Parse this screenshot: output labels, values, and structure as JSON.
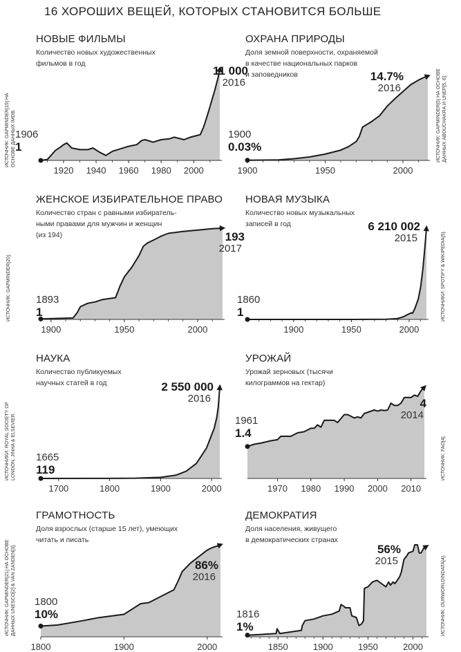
{
  "title": "16 ХОРОШИХ ВЕЩЕЙ, КОТОРЫХ СТАНОВИТСЯ БОЛЬШЕ",
  "colors": {
    "area": "#c8c8c8",
    "line": "#1a1a1a"
  },
  "chart_data": [
    {
      "type": "area",
      "title": "НОВЫЕ ФИЛЬМЫ",
      "subtitle": [
        "Количество новых художественных",
        "фильмов в год"
      ],
      "source": [
        "ИСТОЧНИК: GAPMINDER[19] НА",
        "ОСНОВЕ ДАННЫХ IMDB."
      ],
      "start_year": "1906",
      "start_value": "1",
      "end_year": "2016",
      "end_value": "11 000",
      "xlim": [
        1906,
        2016
      ],
      "ylim": [
        0,
        11000
      ],
      "ticks": [
        1920,
        1940,
        1960,
        1980,
        2000
      ],
      "minor_step": 10,
      "x": [
        1906,
        1910,
        1915,
        1918,
        1920,
        1922,
        1925,
        1930,
        1935,
        1938,
        1942,
        1946,
        1950,
        1955,
        1960,
        1965,
        1968,
        1970,
        1975,
        1980,
        1985,
        1988,
        1990,
        1994,
        1998,
        2002,
        2004,
        2006,
        2008,
        2010,
        2013,
        2015,
        2016
      ],
      "y": [
        1,
        100,
        1200,
        1600,
        1900,
        2100,
        1500,
        1300,
        1300,
        1500,
        1000,
        600,
        1100,
        1400,
        1700,
        1900,
        2400,
        2500,
        2200,
        2500,
        2600,
        2800,
        2700,
        2500,
        2800,
        3000,
        3100,
        4000,
        5200,
        6500,
        8500,
        10000,
        11000
      ]
    },
    {
      "type": "area",
      "title": "ОХРАНА ПРИРОДЫ",
      "subtitle": [
        "Доля земной поверхности, охраняемой",
        "в качестве национальных парков",
        "и заповедников"
      ],
      "source": [
        "ИСТОЧНИК: GAPMINDER[5] НА ОСНОВЕ",
        "ДАННЫХ ABOUCHAKRA И UNEP[5, 6]."
      ],
      "start_year": "1900",
      "start_value": "0.03%",
      "end_year": "2016",
      "end_value": "14.7%",
      "xlim": [
        1900,
        2016
      ],
      "ylim": [
        0,
        14.7
      ],
      "ticks": [
        1900,
        1950,
        2000
      ],
      "minor_step": 10,
      "x": [
        1900,
        1920,
        1930,
        1940,
        1950,
        1960,
        1965,
        1970,
        1972,
        1974,
        1980,
        1985,
        1990,
        1995,
        2000,
        2005,
        2010,
        2013,
        2016
      ],
      "y": [
        0.03,
        0.1,
        0.3,
        0.6,
        1.1,
        1.8,
        2.4,
        3.3,
        4.2,
        5.8,
        6.8,
        7.8,
        9.5,
        10.8,
        12.0,
        13.2,
        14.0,
        14.4,
        14.7
      ]
    },
    {
      "type": "area",
      "title": "ЖЕНСКОЕ ИЗБИРАТЕЛЬНОЕ ПРАВО",
      "subtitle": [
        "Количество стран с равными избиратель-",
        "ными правами для мужчин и женщин",
        "(из 194)"
      ],
      "source": [
        "ИСТОЧНИК: GAPMINDER[20]."
      ],
      "start_year": "1893",
      "start_value": "1",
      "end_year": "2017",
      "end_value": "193",
      "xlim": [
        1893,
        2017
      ],
      "ylim": [
        0,
        193
      ],
      "ticks": [
        1900,
        1950,
        2000
      ],
      "minor_step": 10,
      "x": [
        1893,
        1915,
        1918,
        1920,
        1925,
        1930,
        1935,
        1944,
        1947,
        1950,
        1955,
        1960,
        1963,
        1966,
        1970,
        1975,
        1980,
        1990,
        2000,
        2010,
        2017
      ],
      "y": [
        1,
        3,
        15,
        27,
        34,
        37,
        42,
        46,
        70,
        90,
        110,
        135,
        155,
        162,
        168,
        176,
        182,
        186,
        189,
        192,
        193
      ]
    },
    {
      "type": "area",
      "title": "НОВАЯ МУЗЫКА",
      "subtitle": [
        "Количество новых музыкальных",
        "записей в год"
      ],
      "source": [
        "ИСТОЧНИКИ: SPOTIFY & WIKIPEDIA[5]."
      ],
      "start_year": "1860",
      "start_value": "1",
      "end_year": "2015",
      "end_value": "6 210 002",
      "xlim": [
        1860,
        2015
      ],
      "ylim": [
        0,
        6210002
      ],
      "ticks": [
        1900,
        1950,
        2000
      ],
      "minor_step": 10,
      "x": [
        1860,
        1950,
        1980,
        1990,
        1995,
        2000,
        2002,
        2003,
        2005,
        2008,
        2010,
        2012,
        2014,
        2015
      ],
      "y": [
        1,
        2000,
        15000,
        60000,
        180000,
        380000,
        450000,
        420000,
        750000,
        1400000,
        2200000,
        3500000,
        5200000,
        6210002
      ]
    },
    {
      "type": "area",
      "title": "НАУКА",
      "subtitle": [
        "Количество публикуемых",
        "научных статей в год"
      ],
      "source": [
        "ИСТОЧНИКИ: ROYAL SOCIETY OF",
        "LONDON, JINHA & ELSEVIER."
      ],
      "start_year": "1665",
      "start_value": "119",
      "end_year": "2016",
      "end_value": "2 550 000",
      "xlim": [
        1665,
        2016
      ],
      "ylim": [
        0,
        2550000
      ],
      "ticks": [
        1700,
        1800,
        1900,
        2000
      ],
      "minor_step": null,
      "x": [
        1665,
        1800,
        1850,
        1900,
        1930,
        1950,
        1970,
        1990,
        2005,
        2010,
        2013,
        2016
      ],
      "y": [
        119,
        1000,
        8000,
        30000,
        90000,
        200000,
        420000,
        850000,
        1400000,
        1700000,
        2000000,
        2550000
      ]
    },
    {
      "type": "area",
      "title": "УРОЖАЙ",
      "subtitle": [
        "Урожай зерновых (тысячи",
        "килограммов на гектар)"
      ],
      "source": [
        "ИСТОЧНИК: FAO[4]."
      ],
      "start_year": "1961",
      "start_value": "1.4",
      "end_year": "2014",
      "end_value": "4",
      "xlim": [
        1961,
        2014
      ],
      "ylim": [
        0,
        4
      ],
      "ticks": [
        1970,
        1980,
        1990,
        2000,
        2010
      ],
      "minor_step": 1,
      "x": [
        1961,
        1963,
        1965,
        1968,
        1970,
        1971,
        1974,
        1976,
        1978,
        1980,
        1981,
        1982,
        1983,
        1984,
        1987,
        1988,
        1990,
        1991,
        1993,
        1994,
        1995,
        1996,
        1999,
        2000,
        2001,
        2002,
        2003,
        2004,
        2005,
        2006,
        2007,
        2008,
        2010,
        2011,
        2012,
        2013,
        2014
      ],
      "y": [
        1.4,
        1.5,
        1.55,
        1.65,
        1.7,
        1.85,
        1.85,
        2.0,
        2.05,
        2.2,
        2.2,
        2.35,
        2.25,
        2.55,
        2.55,
        2.45,
        2.8,
        2.8,
        2.65,
        2.7,
        2.65,
        2.85,
        3.0,
        2.95,
        3.0,
        2.98,
        3.0,
        3.3,
        3.2,
        3.2,
        3.3,
        3.55,
        3.55,
        3.65,
        3.6,
        3.85,
        4.0
      ]
    },
    {
      "type": "area",
      "title": "ГРАМОТНОСТЬ",
      "subtitle": [
        "Доля взрослых (старше 15 лет), умеющих",
        "читать и писать"
      ],
      "source": [
        "ИСТОЧНИК: GAPMINDER[21] НА ОСНОВЕ",
        "ДАННЫХ UNESCO[2] & VAN ZANDEN[3]."
      ],
      "start_year": "1800",
      "start_value": "10%",
      "end_year": "2016",
      "end_value": "86%",
      "xlim": [
        1800,
        2016
      ],
      "ylim": [
        0,
        86
      ],
      "ticks": [
        1800,
        1900,
        2000
      ],
      "minor_step": null,
      "x": [
        1800,
        1820,
        1850,
        1870,
        1900,
        1910,
        1920,
        1930,
        1950,
        1960,
        1965,
        1970,
        1980,
        1990,
        2000,
        2005,
        2016
      ],
      "y": [
        10,
        11,
        15,
        18,
        21,
        26,
        31,
        32,
        40,
        44,
        52,
        61,
        69,
        75,
        81,
        83,
        86
      ]
    },
    {
      "type": "area",
      "title": "ДЕМОКРАТИЯ",
      "subtitle": [
        "Доля населения, живущего",
        "в демократических странах"
      ],
      "source": [
        "ИСТОЧНИК: OURWORLDINDATA[4]."
      ],
      "start_year": "1816",
      "start_value": "1%",
      "end_year": "2015",
      "end_value": "56%",
      "xlim": [
        1816,
        2015
      ],
      "ylim": [
        0,
        57
      ],
      "ticks": [
        1850,
        1900,
        1950,
        2000
      ],
      "minor_step": 10,
      "x": [
        1816,
        1848,
        1849,
        1850,
        1852,
        1876,
        1877,
        1880,
        1890,
        1900,
        1910,
        1918,
        1920,
        1923,
        1925,
        1930,
        1932,
        1937,
        1940,
        1943,
        1945,
        1946,
        1950,
        1955,
        1960,
        1965,
        1970,
        1973,
        1975,
        1978,
        1980,
        1985,
        1987,
        1990,
        1993,
        1995,
        2000,
        2002,
        2005,
        2007,
        2009,
        2012,
        2015
      ],
      "y": [
        1,
        2,
        5,
        4,
        2,
        4,
        7,
        10,
        11,
        13,
        14,
        16,
        20,
        19,
        18,
        18,
        13,
        12,
        7,
        8,
        10,
        30,
        31,
        34,
        35,
        33,
        31,
        34,
        32,
        34,
        33,
        37,
        40,
        48,
        50,
        52,
        53,
        57,
        57,
        52,
        52,
        55,
        56
      ]
    }
  ]
}
